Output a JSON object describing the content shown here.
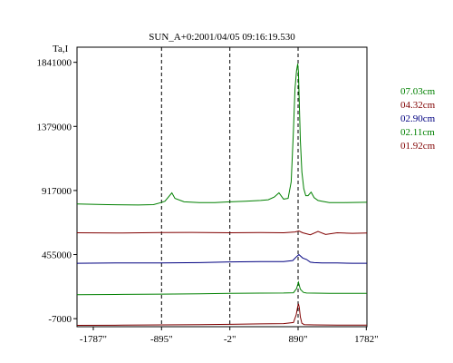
{
  "chart_data": {
    "type": "line",
    "title": "SUN_A+0:2001/04/05 09:16:19.530",
    "ylabel": "Ta,I",
    "xlim": [
      -2000,
      1790
    ],
    "ylim": [
      -65000,
      1950000
    ],
    "x_ticks": [
      {
        "value": -1787,
        "label": "-1787\""
      },
      {
        "value": -895,
        "label": "-895\""
      },
      {
        "value": -2,
        "label": "-2\""
      },
      {
        "value": 890,
        "label": "890\""
      },
      {
        "value": 1782,
        "label": "1782\""
      }
    ],
    "y_ticks": [
      {
        "value": 1841000,
        "label": "1841000"
      },
      {
        "value": 1379000,
        "label": "1379000"
      },
      {
        "value": 917000,
        "label": "917000"
      },
      {
        "value": 455000,
        "label": "455000"
      },
      {
        "value": -7000,
        "label": "-7000"
      }
    ],
    "vlines_x": [
      -895,
      -2,
      890
    ],
    "grid": false,
    "legend_position": "right",
    "series": [
      {
        "name": "07.03cm",
        "color": "#008000",
        "x": [
          -2000,
          -1600,
          -1200,
          -1000,
          -900,
          -850,
          -760,
          -720,
          -600,
          -400,
          -200,
          0,
          200,
          400,
          500,
          580,
          640,
          700,
          760,
          800,
          830,
          850,
          870,
          885,
          895,
          905,
          920,
          940,
          965,
          990,
          1020,
          1060,
          1100,
          1150,
          1200,
          1300,
          1500,
          1790
        ],
        "y": [
          820000,
          815000,
          812000,
          815000,
          830000,
          840000,
          900000,
          860000,
          835000,
          830000,
          830000,
          835000,
          840000,
          845000,
          850000,
          870000,
          900000,
          855000,
          860000,
          980000,
          1350000,
          1650000,
          1780000,
          1830000,
          1770000,
          1560000,
          1280000,
          1050000,
          930000,
          880000,
          880000,
          905000,
          865000,
          845000,
          840000,
          830000,
          830000,
          832000
        ]
      },
      {
        "name": "04.32cm",
        "color": "#800000",
        "x": [
          -2000,
          -1400,
          -900,
          -500,
          0,
          400,
          700,
          850,
          900,
          950,
          1050,
          1150,
          1250,
          1400,
          1600,
          1790
        ],
        "y": [
          612000,
          610000,
          614000,
          615000,
          612000,
          614000,
          612000,
          618000,
          625000,
          612000,
          598000,
          622000,
          600000,
          612000,
          608000,
          611000
        ]
      },
      {
        "name": "02.90cm",
        "color": "#000080",
        "x": [
          -2000,
          -1400,
          -900,
          -400,
          0,
          400,
          700,
          820,
          870,
          900,
          950,
          1000,
          1050,
          1100,
          1200,
          1400,
          1600,
          1790
        ],
        "y": [
          392000,
          395000,
          395000,
          397000,
          402000,
          404000,
          405000,
          412000,
          440000,
          455000,
          430000,
          420000,
          400000,
          397000,
          395000,
          394000,
          392000,
          392000
        ]
      },
      {
        "name": "02.11cm",
        "color": "#008000",
        "x": [
          -2000,
          -1400,
          -900,
          -400,
          0,
          400,
          700,
          830,
          870,
          895,
          920,
          960,
          1000,
          1100,
          1300,
          1500,
          1790
        ],
        "y": [
          165000,
          168000,
          170000,
          172000,
          175000,
          177000,
          178000,
          180000,
          210000,
          255000,
          205000,
          182000,
          178000,
          177000,
          176000,
          175000,
          175000
        ]
      },
      {
        "name": "01.92cm",
        "color": "#800000",
        "x": [
          -2000,
          -1400,
          -900,
          -400,
          0,
          400,
          700,
          830,
          865,
          885,
          895,
          905,
          920,
          940,
          970,
          1100,
          1400,
          1790
        ],
        "y": [
          -55000,
          -54000,
          -52000,
          -50000,
          -48000,
          -45000,
          -43000,
          -35000,
          20000,
          80000,
          100000,
          75000,
          5000,
          -40000,
          -50000,
          -52000,
          -53000,
          -54000
        ]
      }
    ]
  }
}
